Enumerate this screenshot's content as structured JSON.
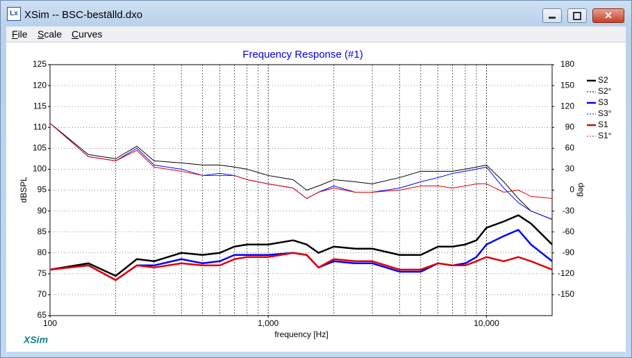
{
  "window": {
    "title": "XSim -- BSC-beställd.dxo",
    "menu": [
      "File",
      "Scale",
      "Curves"
    ]
  },
  "logo": "XSim",
  "chart_data": {
    "type": "line",
    "title": "Frequency Response (#1)",
    "x_label": "frequency [Hz]",
    "y_label": "dBSPL",
    "y2_label": "deg",
    "x_log": true,
    "grid": true,
    "xlim": [
      100,
      20000
    ],
    "xticks": [
      100,
      {
        "value": 1000,
        "label": "1,000"
      },
      {
        "value": 10000,
        "label": "10,000"
      }
    ],
    "ylim": [
      65,
      125
    ],
    "yticks": [
      65,
      70,
      75,
      80,
      85,
      90,
      95,
      100,
      105,
      110,
      115,
      120,
      125
    ],
    "y2lim": [
      -180,
      180
    ],
    "y2ticks": [
      -150,
      -120,
      -90,
      -60,
      -30,
      0,
      30,
      60,
      90,
      120,
      150,
      180
    ],
    "x": [
      100,
      150,
      200,
      250,
      300,
      400,
      500,
      600,
      700,
      800,
      1000,
      1300,
      1500,
      1700,
      2000,
      2500,
      3000,
      4000,
      5000,
      6000,
      7000,
      8000,
      9000,
      10000,
      12000,
      14000,
      16000,
      20000
    ],
    "series": [
      {
        "name": "S2",
        "color": "#000000",
        "width": 2.5,
        "values": [
          76,
          77.5,
          74.5,
          78.5,
          78,
          80,
          79.5,
          80,
          81.5,
          82,
          82,
          83,
          82,
          80,
          81.5,
          81,
          81,
          79.5,
          79.5,
          81.5,
          81.5,
          82,
          83,
          86,
          87.5,
          89,
          87,
          82
        ]
      },
      {
        "name": "S2°",
        "color": "#000000",
        "width": 1,
        "axis": "y2",
        "values": [
          96,
          51,
          45,
          63,
          42,
          39,
          36,
          36,
          33,
          30,
          21,
          15,
          0,
          6,
          15,
          12,
          9,
          18,
          27,
          27,
          27,
          30,
          33,
          36,
          12,
          -12,
          -30,
          -42
        ]
      },
      {
        "name": "S3",
        "color": "#0000ff",
        "width": 2.5,
        "values": [
          76,
          77,
          73.5,
          77,
          77,
          78.5,
          77.5,
          78,
          79.5,
          79.5,
          79.5,
          80,
          79.5,
          76.5,
          78,
          77.5,
          77.5,
          75.5,
          75.5,
          77.5,
          77,
          77.5,
          79,
          82,
          84,
          85.5,
          82,
          78
        ]
      },
      {
        "name": "S3°",
        "color": "#0000ff",
        "width": 1,
        "axis": "y2",
        "values": [
          96,
          48,
          42,
          60,
          36,
          30,
          21,
          24,
          21,
          15,
          9,
          3,
          -12,
          -3,
          6,
          -3,
          -3,
          3,
          12,
          18,
          24,
          27,
          30,
          33,
          3,
          -18,
          -30,
          -42
        ]
      },
      {
        "name": "S1",
        "color": "#e00000",
        "width": 2.5,
        "values": [
          76,
          77,
          73.5,
          77,
          76.5,
          77.5,
          77,
          77,
          78.5,
          79,
          79,
          80,
          79.5,
          76.5,
          78.5,
          78,
          78,
          76,
          76,
          77.5,
          77,
          77,
          78,
          79,
          78,
          79,
          78,
          76
        ]
      },
      {
        "name": "S1°",
        "color": "#e00000",
        "width": 1,
        "axis": "y2",
        "values": [
          96,
          48,
          42,
          57,
          33,
          27,
          21,
          21,
          21,
          15,
          9,
          3,
          -12,
          -3,
          3,
          -3,
          -3,
          0,
          6,
          6,
          3,
          6,
          9,
          9,
          -3,
          0,
          -9,
          -12
        ]
      }
    ]
  }
}
